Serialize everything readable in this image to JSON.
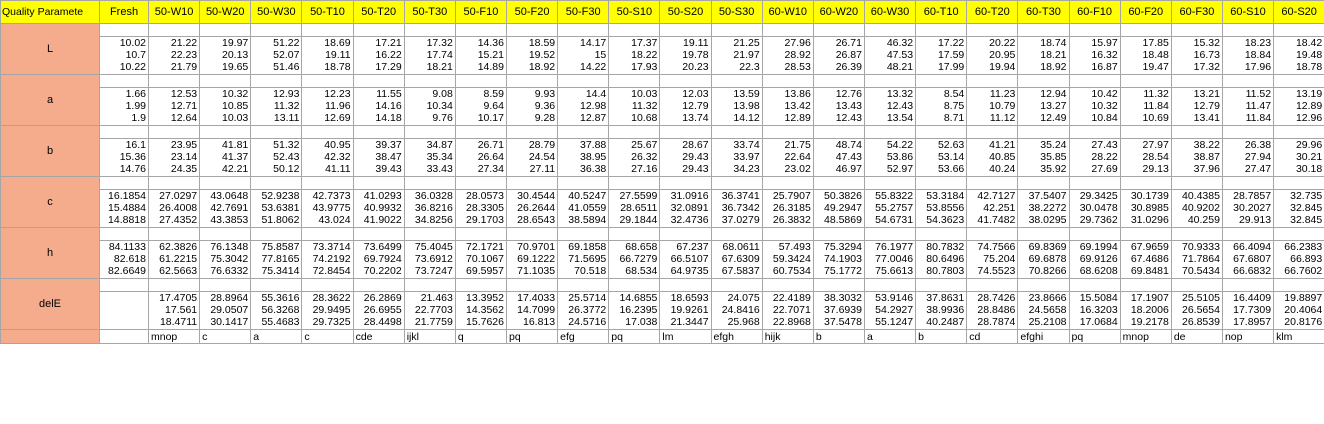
{
  "headers": [
    "Quality Paramete",
    "Fresh",
    "50-W10",
    "50-W20",
    "50-W30",
    "50-T10",
    "50-T20",
    "50-T30",
    "50-F10",
    "50-F20",
    "50-F30",
    "50-S10",
    "50-S20",
    "50-S30",
    "60-W10",
    "60-W20",
    "60-W30",
    "60-T10",
    "60-T20",
    "60-T30",
    "60-F10",
    "60-F20",
    "60-F30",
    "60-S10",
    "60-S20"
  ],
  "params": [
    {
      "name": "L",
      "rows": [
        [
          "10.02",
          "21.22",
          "19.97",
          "51.22",
          "18.69",
          "17.21",
          "17.32",
          "14.36",
          "18.59",
          "14.17",
          "17.37",
          "19.11",
          "21.25",
          "27.96",
          "26.71",
          "46.32",
          "17.22",
          "20.22",
          "18.74",
          "15.97",
          "17.85",
          "15.32",
          "18.23",
          "18.42"
        ],
        [
          "10.7",
          "22.23",
          "20.13",
          "52.07",
          "19.11",
          "16.22",
          "17.74",
          "15.21",
          "19.52",
          "15",
          "18.22",
          "19.78",
          "21.97",
          "28.92",
          "26.87",
          "47.53",
          "17.59",
          "20.95",
          "18.21",
          "16.32",
          "18.48",
          "16.73",
          "18.84",
          "19.48"
        ],
        [
          "10.22",
          "21.79",
          "19.65",
          "51.46",
          "18.78",
          "17.29",
          "18.21",
          "14.89",
          "18.92",
          "14.22",
          "17.93",
          "20.23",
          "22.3",
          "28.53",
          "26.39",
          "48.21",
          "17.99",
          "19.94",
          "18.92",
          "16.87",
          "19.47",
          "17.32",
          "17.96",
          "18.78"
        ]
      ]
    },
    {
      "name": "a",
      "rows": [
        [
          "1.66",
          "12.53",
          "10.32",
          "12.93",
          "12.23",
          "11.55",
          "9.08",
          "8.59",
          "9.93",
          "14.4",
          "10.03",
          "12.03",
          "13.59",
          "13.86",
          "12.76",
          "13.32",
          "8.54",
          "11.23",
          "12.94",
          "10.42",
          "11.32",
          "13.21",
          "11.52",
          "13.19"
        ],
        [
          "1.99",
          "12.71",
          "10.85",
          "11.32",
          "11.96",
          "14.16",
          "10.34",
          "9.64",
          "9.36",
          "12.98",
          "11.32",
          "12.79",
          "13.98",
          "13.42",
          "13.43",
          "12.43",
          "8.75",
          "10.79",
          "13.27",
          "10.32",
          "11.84",
          "12.79",
          "11.47",
          "12.89"
        ],
        [
          "1.9",
          "12.64",
          "10.03",
          "13.11",
          "12.69",
          "14.18",
          "9.76",
          "10.17",
          "9.28",
          "12.87",
          "10.68",
          "13.74",
          "14.12",
          "12.89",
          "12.43",
          "13.54",
          "8.71",
          "11.12",
          "12.49",
          "10.84",
          "10.69",
          "13.41",
          "11.84",
          "12.96"
        ]
      ]
    },
    {
      "name": "b",
      "rows": [
        [
          "16.1",
          "23.95",
          "41.81",
          "51.32",
          "40.95",
          "39.37",
          "34.87",
          "26.71",
          "28.79",
          "37.88",
          "25.67",
          "28.67",
          "33.74",
          "21.75",
          "48.74",
          "54.22",
          "52.63",
          "41.21",
          "35.24",
          "27.43",
          "27.97",
          "38.22",
          "26.38",
          "29.96"
        ],
        [
          "15.36",
          "23.14",
          "41.37",
          "52.43",
          "42.32",
          "38.47",
          "35.34",
          "26.64",
          "24.54",
          "38.95",
          "26.32",
          "29.43",
          "33.97",
          "22.64",
          "47.43",
          "53.86",
          "53.14",
          "40.85",
          "35.85",
          "28.22",
          "28.54",
          "38.87",
          "27.94",
          "30.21"
        ],
        [
          "14.76",
          "24.35",
          "42.21",
          "50.12",
          "41.11",
          "39.43",
          "33.43",
          "27.34",
          "27.11",
          "36.38",
          "27.16",
          "29.43",
          "34.23",
          "23.02",
          "46.97",
          "52.97",
          "53.66",
          "40.24",
          "35.92",
          "27.69",
          "29.13",
          "37.96",
          "27.47",
          "30.18"
        ]
      ]
    },
    {
      "name": "c",
      "rows": [
        [
          "16.1854",
          "27.0297",
          "43.0648",
          "52.9238",
          "42.7373",
          "41.0293",
          "36.0328",
          "28.0573",
          "30.4544",
          "40.5247",
          "27.5599",
          "31.0916",
          "36.3741",
          "25.7907",
          "50.3826",
          "55.8322",
          "53.3184",
          "42.7127",
          "37.5407",
          "29.3425",
          "30.1739",
          "40.4385",
          "28.7857",
          "32.735"
        ],
        [
          "15.4884",
          "26.4008",
          "42.7691",
          "53.6381",
          "43.9775",
          "40.9932",
          "36.8216",
          "28.3305",
          "26.2644",
          "41.0559",
          "28.6511",
          "32.0891",
          "36.7342",
          "26.3185",
          "49.2947",
          "55.2757",
          "53.8556",
          "42.251",
          "38.2272",
          "30.0478",
          "30.8985",
          "40.9202",
          "30.2027",
          "32.845"
        ],
        [
          "14.8818",
          "27.4352",
          "43.3853",
          "51.8062",
          "43.024",
          "41.9022",
          "34.8256",
          "29.1703",
          "28.6543",
          "38.5894",
          "29.1844",
          "32.4736",
          "37.0279",
          "26.3832",
          "48.5869",
          "54.6731",
          "54.3623",
          "41.7482",
          "38.0295",
          "29.7362",
          "31.0296",
          "40.259",
          "29.913",
          "32.845"
        ]
      ]
    },
    {
      "name": "h",
      "rows": [
        [
          "84.1133",
          "62.3826",
          "76.1348",
          "75.8587",
          "73.3714",
          "73.6499",
          "75.4045",
          "72.1721",
          "70.9701",
          "69.1858",
          "68.658",
          "67.237",
          "68.0611",
          "57.493",
          "75.3294",
          "76.1977",
          "80.7832",
          "74.7566",
          "69.8369",
          "69.1994",
          "67.9659",
          "70.9333",
          "66.4094",
          "66.2383"
        ],
        [
          "82.618",
          "61.2215",
          "75.3042",
          "77.8165",
          "74.2192",
          "69.7924",
          "73.6912",
          "70.1067",
          "69.1222",
          "71.5695",
          "66.7279",
          "66.5107",
          "67.6309",
          "59.3424",
          "74.1903",
          "77.0046",
          "80.6496",
          "75.204",
          "69.6878",
          "69.9126",
          "67.4686",
          "71.7864",
          "67.6807",
          "66.893"
        ],
        [
          "82.6649",
          "62.5663",
          "76.6332",
          "75.3414",
          "72.8454",
          "70.2202",
          "73.7247",
          "69.5957",
          "71.1035",
          "70.518",
          "68.534",
          "64.9735",
          "67.5837",
          "60.7534",
          "75.1772",
          "75.6613",
          "80.7803",
          "74.5523",
          "70.8266",
          "68.6208",
          "69.8481",
          "70.5434",
          "66.6832",
          "66.7602"
        ]
      ]
    },
    {
      "name": "delE",
      "rows": [
        [
          "",
          "17.4705",
          "28.8964",
          "55.3616",
          "28.3622",
          "26.2869",
          "21.463",
          "13.3952",
          "17.4033",
          "25.5714",
          "14.6855",
          "18.6593",
          "24.075",
          "22.4189",
          "38.3032",
          "53.9146",
          "37.8631",
          "28.7426",
          "23.8666",
          "15.5084",
          "17.1907",
          "25.5105",
          "16.4409",
          "19.8897"
        ],
        [
          "",
          "17.561",
          "29.0507",
          "56.3268",
          "29.9495",
          "26.6955",
          "22.7703",
          "14.3562",
          "14.7099",
          "26.3772",
          "16.2395",
          "19.9261",
          "24.8416",
          "22.7071",
          "37.6939",
          "54.2927",
          "38.9936",
          "28.8486",
          "24.5658",
          "16.3203",
          "18.2006",
          "26.5654",
          "17.7309",
          "20.4064"
        ],
        [
          "",
          "18.4711",
          "30.1417",
          "55.4683",
          "29.7325",
          "28.4498",
          "21.7759",
          "15.7626",
          "16.813",
          "24.5716",
          "17.038",
          "21.3447",
          "25.968",
          "22.8968",
          "37.5478",
          "55.1247",
          "40.2487",
          "28.7874",
          "25.2108",
          "17.0684",
          "19.2178",
          "26.8539",
          "17.8957",
          "20.8176"
        ]
      ]
    }
  ],
  "letters": [
    "",
    "mnop",
    "c",
    "a",
    "c",
    "cde",
    "ijkl",
    "q",
    "pq",
    "efg",
    "pq",
    "lm",
    "efgh",
    "hijk",
    "b",
    "a",
    "b",
    "cd",
    "efghi",
    "pq",
    "mnop",
    "de",
    "nop",
    "klm"
  ]
}
